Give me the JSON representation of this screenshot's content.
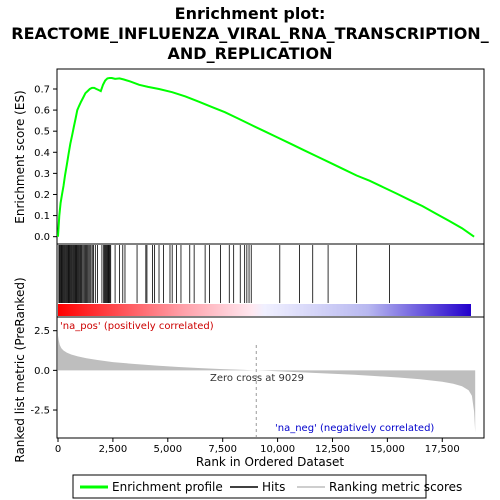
{
  "chart_data": {
    "type": "line",
    "title_lines": [
      "Enrichment plot:",
      "REACTOME_INFLUENZA_VIRAL_RNA_TRANSCRIPTION_",
      "AND_REPLICATION"
    ],
    "xlabel": "Rank in Ordered Dataset",
    "es_panel": {
      "ylabel": "Enrichment score (ES)",
      "ylim": [
        -0.03,
        0.79
      ],
      "yticks": [
        0.0,
        0.1,
        0.2,
        0.3,
        0.4,
        0.5,
        0.6,
        0.7
      ],
      "ytick_labels": [
        "0.0",
        "0.1",
        "0.2",
        "0.3",
        "0.4",
        "0.5",
        "0.6",
        "0.7"
      ],
      "series_name": "Enrichment profile",
      "line_color": "#00ff00",
      "x": [
        0,
        60,
        120,
        180,
        250,
        320,
        400,
        480,
        560,
        640,
        720,
        800,
        880,
        960,
        1050,
        1150,
        1250,
        1350,
        1450,
        1550,
        1650,
        1750,
        1850,
        1950,
        2050,
        2150,
        2250,
        2350,
        2450,
        2600,
        2800,
        3000,
        3300,
        3700,
        4100,
        4600,
        5200,
        5800,
        6400,
        7000,
        7600,
        8200,
        8800,
        9400,
        10000,
        10600,
        11200,
        11800,
        12400,
        13000,
        13600,
        14200,
        14800,
        15400,
        16000,
        16600,
        17200,
        17800,
        18400,
        18950
      ],
      "y": [
        0.0,
        0.1,
        0.16,
        0.2,
        0.24,
        0.29,
        0.34,
        0.39,
        0.44,
        0.48,
        0.52,
        0.56,
        0.6,
        0.62,
        0.64,
        0.66,
        0.68,
        0.69,
        0.7,
        0.705,
        0.705,
        0.7,
        0.695,
        0.69,
        0.72,
        0.74,
        0.75,
        0.752,
        0.752,
        0.748,
        0.75,
        0.745,
        0.735,
        0.72,
        0.71,
        0.7,
        0.685,
        0.665,
        0.64,
        0.615,
        0.59,
        0.56,
        0.53,
        0.5,
        0.47,
        0.44,
        0.41,
        0.38,
        0.35,
        0.32,
        0.29,
        0.265,
        0.235,
        0.205,
        0.175,
        0.145,
        0.11,
        0.075,
        0.04,
        0.0
      ]
    },
    "hits_panel": {
      "series_name": "Hits",
      "hit_ranks": [
        40,
        70,
        100,
        140,
        180,
        220,
        260,
        300,
        340,
        380,
        420,
        460,
        500,
        540,
        580,
        620,
        660,
        700,
        740,
        780,
        820,
        860,
        900,
        940,
        980,
        1020,
        1060,
        1100,
        1150,
        1200,
        1250,
        1300,
        1350,
        1400,
        1450,
        1500,
        1560,
        1620,
        1700,
        1800,
        2000,
        2080,
        2120,
        2160,
        2200,
        2240,
        2280,
        2320,
        2360,
        2400,
        2600,
        2800,
        2950,
        3050,
        3600,
        4000,
        4050,
        4300,
        4400,
        4600,
        4800,
        5100,
        5200,
        5400,
        5600,
        6000,
        6200,
        6700,
        6900,
        7400,
        7800,
        8000,
        8300,
        8500,
        8600,
        8700,
        8800,
        10100,
        11000,
        11600,
        12300,
        13600,
        15100
      ]
    },
    "rank_panel": {
      "ylabel": "Ranked list metric (PreRanked)",
      "ylim": [
        -4.2,
        3.3
      ],
      "yticks": [
        2.5,
        0.0,
        -2.5
      ],
      "ytick_labels": [
        "2.5",
        "0.0",
        "-2.5"
      ],
      "series_name": "Ranking metric scores",
      "fill_color": "#bebebe",
      "x": [
        0,
        30,
        80,
        150,
        250,
        400,
        600,
        900,
        1300,
        1800,
        2500,
        3500,
        4500,
        5500,
        6500,
        7500,
        8500,
        9029,
        9500,
        10500,
        11500,
        12500,
        13500,
        14500,
        15500,
        16500,
        17500,
        18000,
        18400,
        18700,
        18850,
        18950,
        19000
      ],
      "y": [
        2.2,
        1.9,
        1.6,
        1.4,
        1.25,
        1.12,
        1.0,
        0.88,
        0.76,
        0.65,
        0.52,
        0.4,
        0.3,
        0.21,
        0.14,
        0.08,
        0.03,
        0.0,
        -0.03,
        -0.09,
        -0.15,
        -0.21,
        -0.28,
        -0.36,
        -0.45,
        -0.56,
        -0.72,
        -0.85,
        -1.0,
        -1.25,
        -1.6,
        -2.6,
        -3.9
      ]
    },
    "xlim": [
      0,
      19400
    ],
    "xticks": [
      0,
      2500,
      5000,
      7500,
      10000,
      12500,
      15000,
      17500
    ],
    "xtick_labels": [
      "0",
      "2,500",
      "5,000",
      "7,500",
      "10,000",
      "12,500",
      "15,000",
      "17,500"
    ],
    "zero_cross_rank": 9029,
    "annotations": {
      "pos": "'na_pos' (positively correlated)",
      "neg": "'na_neg' (negatively correlated)",
      "zero": "Zero cross at 9029"
    },
    "legend": [
      "Enrichment profile",
      "Hits",
      "Ranking metric scores"
    ],
    "legend_placement": "bottom",
    "grid": false
  }
}
